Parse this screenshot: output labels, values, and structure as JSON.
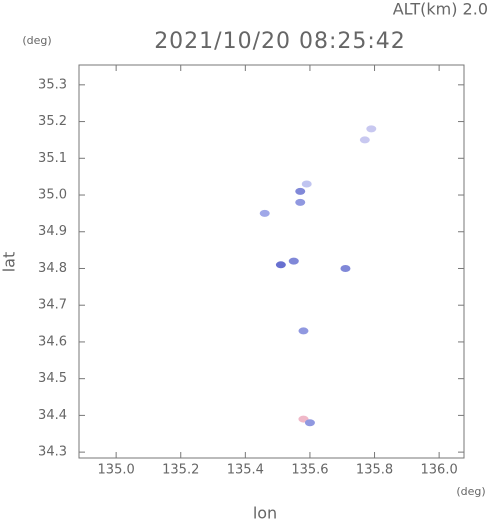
{
  "chart_data": {
    "type": "scatter",
    "title": "2021/10/20 08:25:42",
    "subtitle": "ALT(km) 2.0",
    "x_label": "lon",
    "y_label": "lat",
    "x_unit": "(deg)",
    "y_unit": "(deg)",
    "x": [
      135.79,
      135.77,
      135.59,
      135.57,
      135.46,
      135.57,
      135.51,
      135.55,
      135.71,
      135.58,
      135.58,
      135.6
    ],
    "y": [
      35.18,
      35.15,
      35.03,
      35.01,
      34.95,
      34.98,
      34.81,
      34.82,
      34.8,
      34.63,
      34.39,
      34.38
    ],
    "colors": [
      "#c8c8f0",
      "#c8c8f0",
      "#c0c4f0",
      "#8088d8",
      "#a0a8e8",
      "#9098e0",
      "#6870d0",
      "#8088d8",
      "#8088d8",
      "#9098e0",
      "#f0b8c8",
      "#9098e0"
    ],
    "xlim": [
      134.885,
      136.077
    ],
    "ylim": [
      34.284,
      35.354
    ],
    "xticks": [
      {
        "value": 135,
        "label": "135.0"
      },
      135.2,
      135.4,
      135.6,
      135.8,
      {
        "value": 136,
        "label": "136.0"
      }
    ],
    "yticks": [
      34.3,
      34.4,
      34.5,
      34.6,
      34.7,
      34.8,
      34.9,
      {
        "value": 35,
        "label": "35.0"
      },
      35.1,
      35.2,
      35.3
    ]
  }
}
